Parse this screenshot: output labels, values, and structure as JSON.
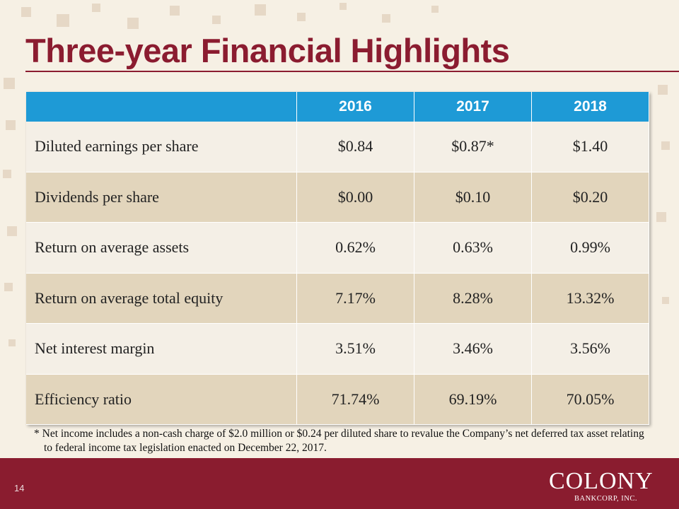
{
  "header": {
    "title": "Three-year Financial Highlights"
  },
  "table": {
    "columns": [
      "2016",
      "2017",
      "2018"
    ],
    "rows": [
      [
        "Diluted earnings per share",
        "$0.84",
        "$0.87*",
        "$1.40"
      ],
      [
        "Dividends per share",
        "$0.00",
        "$0.10",
        "$0.20"
      ],
      [
        "Return on average assets",
        "0.62%",
        "0.63%",
        "0.99%"
      ],
      [
        "Return on average total equity",
        "7.17%",
        "8.28%",
        "13.32%"
      ],
      [
        "Net interest margin",
        "3.51%",
        "3.46%",
        "3.56%"
      ],
      [
        "Efficiency ratio",
        "71.74%",
        "69.19%",
        "70.05%"
      ]
    ]
  },
  "footnote": "* Net income includes a non-cash charge of $2.0 million or $0.24 per diluted share to revalue the Company’s net deferred tax asset relating to federal income tax legislation enacted on December 22, 2017.",
  "footer": {
    "page_number": "14",
    "logo": "COLONY",
    "logo_subtitle": "BANKCORP, INC."
  }
}
